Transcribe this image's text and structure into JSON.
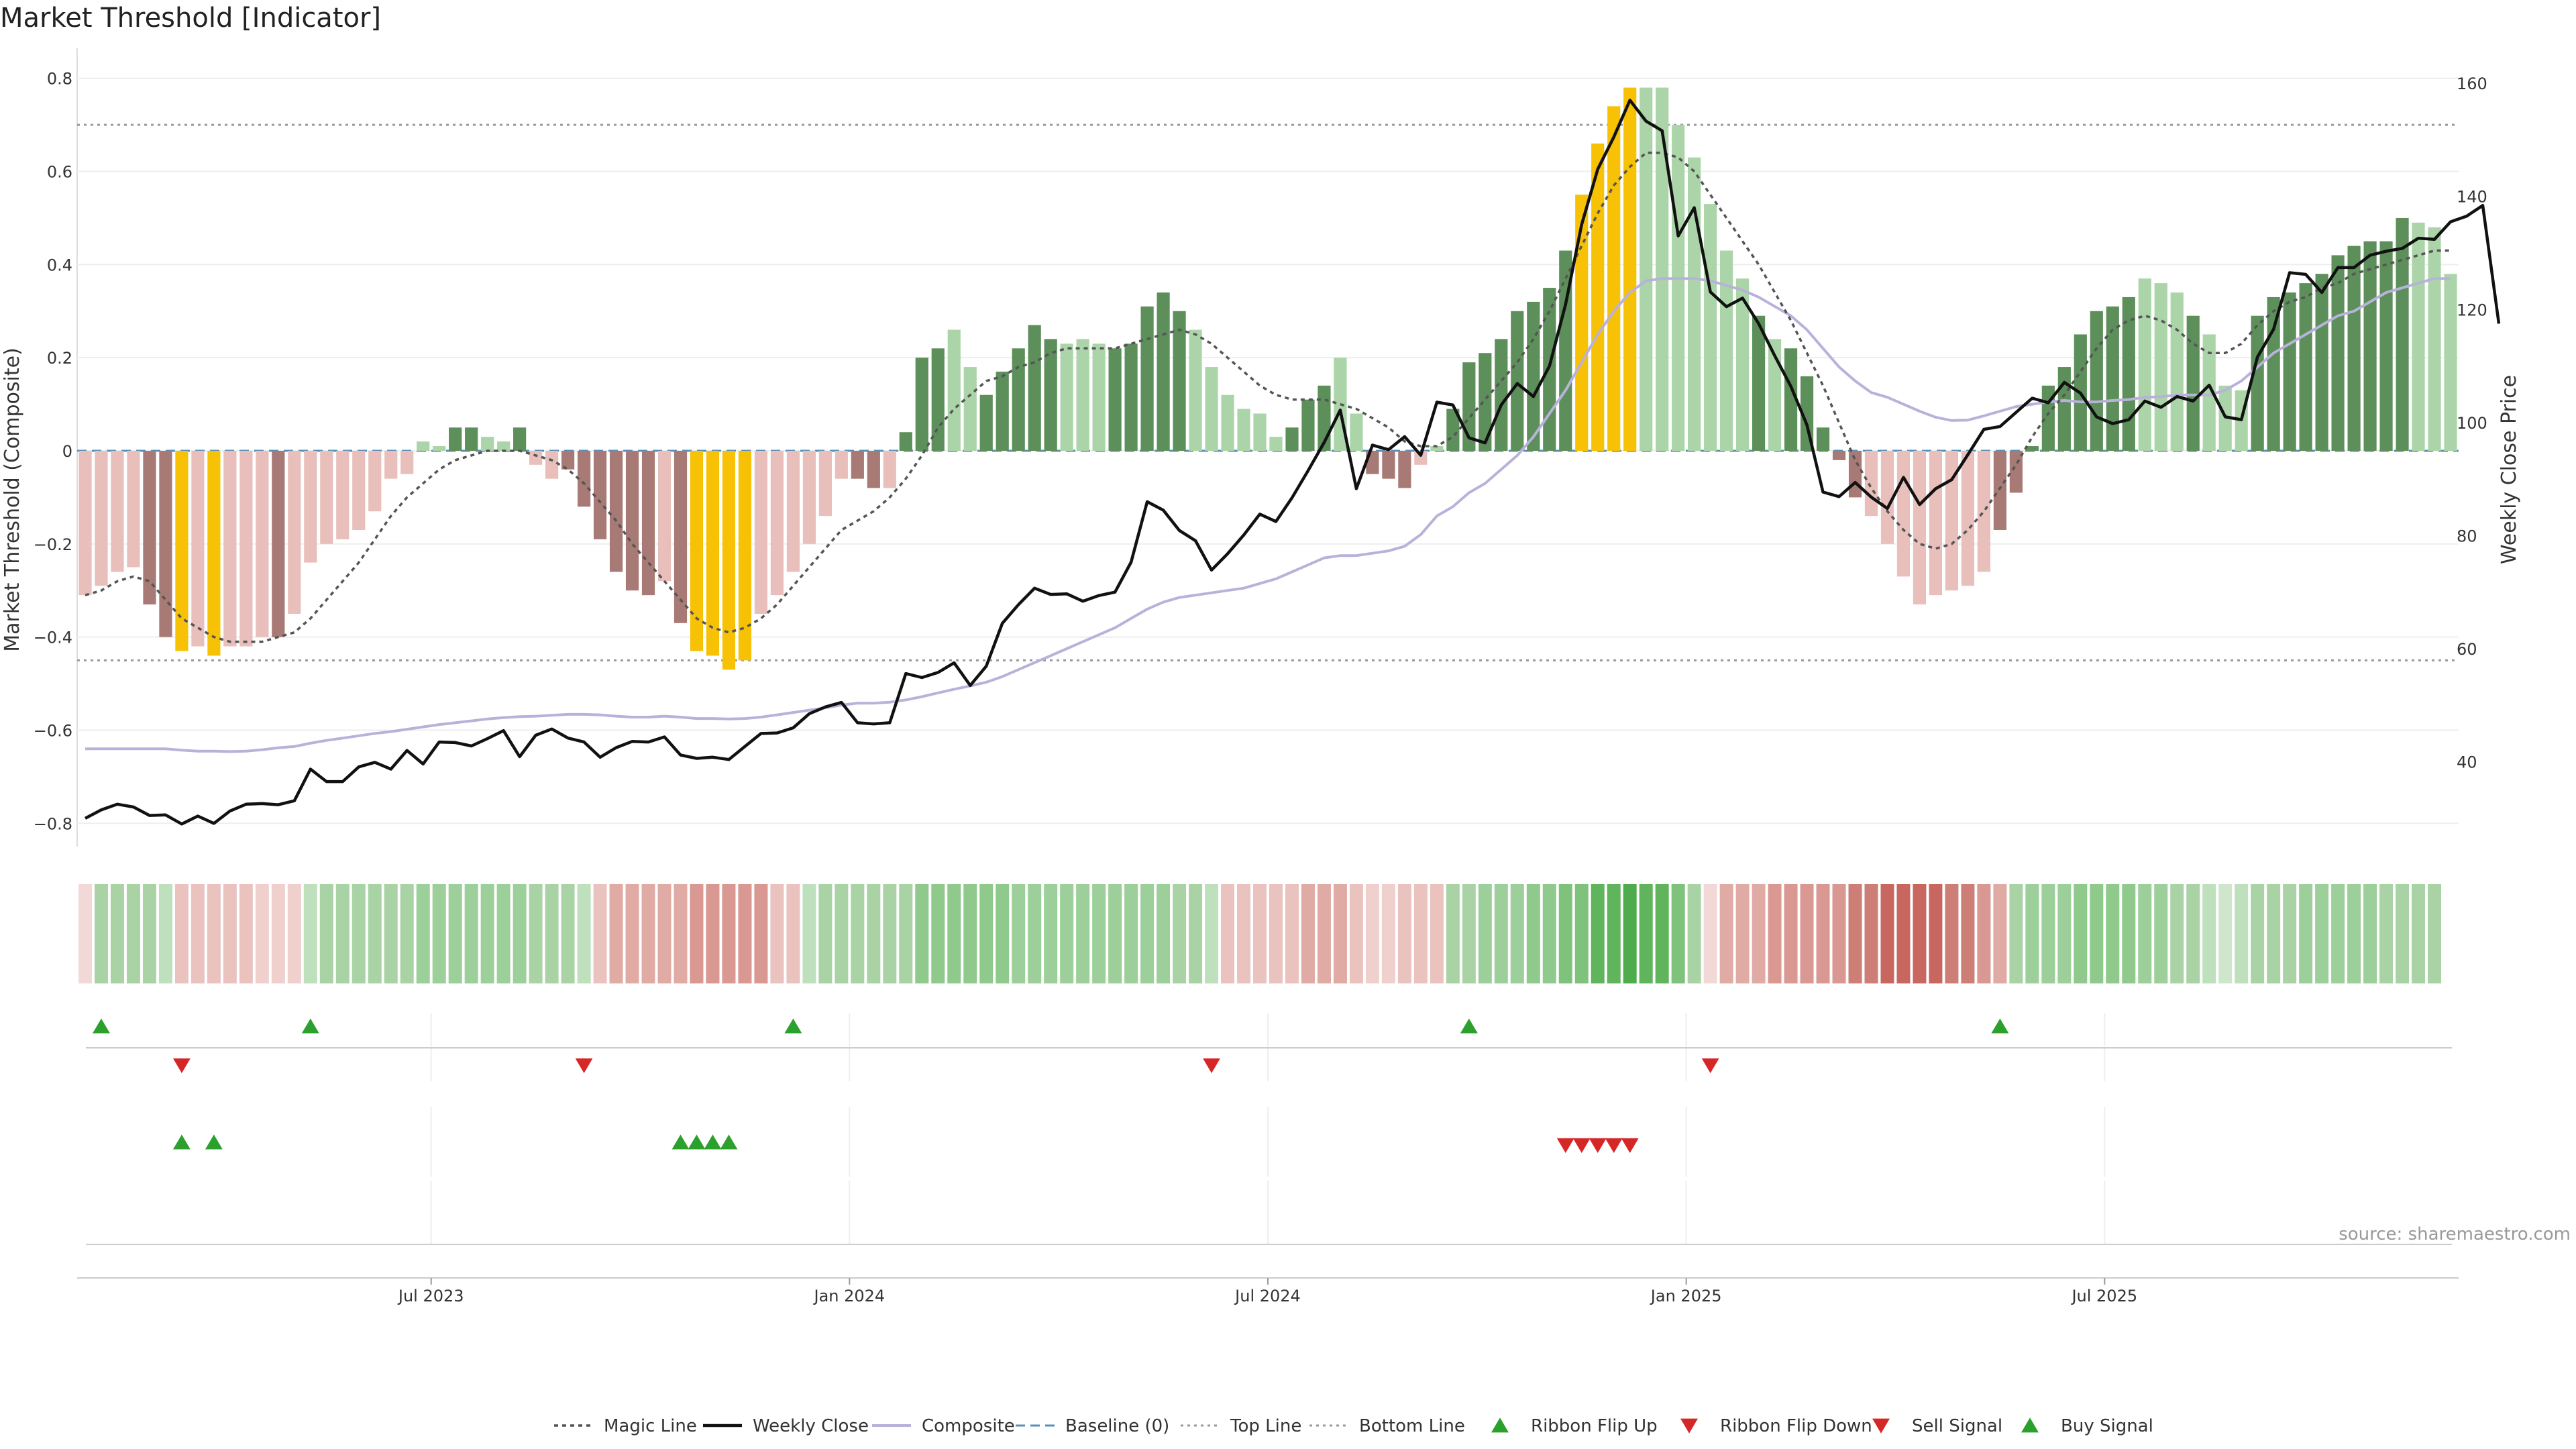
{
  "chart_data": {
    "type": "bar",
    "title": "Market Threshold [Indicator]",
    "ylabel": "Market Threshold (Composite)",
    "y2label": "Weekly Close Price",
    "ylim": [
      -0.85,
      0.85
    ],
    "y2lim": [
      25,
      165
    ],
    "yticks": [
      {
        "v": 0.8,
        "label": "0.8"
      },
      {
        "v": 0.6,
        "label": "0.6"
      },
      {
        "v": 0.4,
        "label": "0.4"
      },
      {
        "v": 0.2,
        "label": "0.2"
      },
      {
        "v": 0,
        "label": "0"
      },
      {
        "v": -0.2,
        "label": "−0.2"
      },
      {
        "v": -0.4,
        "label": "−0.4"
      },
      {
        "v": -0.6,
        "label": "−0.6"
      },
      {
        "v": -0.8,
        "label": "−0.8"
      }
    ],
    "y2ticks": [
      {
        "v": 160,
        "label": "160"
      },
      {
        "v": 140,
        "label": "140"
      },
      {
        "v": 120,
        "label": "120"
      },
      {
        "v": 100,
        "label": "100"
      },
      {
        "v": 80,
        "label": "80"
      },
      {
        "v": 60,
        "label": "60"
      },
      {
        "v": 40,
        "label": "40"
      }
    ],
    "xticks": [
      {
        "week": 21.5,
        "label": "Jul 2023"
      },
      {
        "week": 47.5,
        "label": "Jan 2024"
      },
      {
        "week": 73.5,
        "label": "Jul 2024"
      },
      {
        "week": 99.5,
        "label": "Jan 2025"
      },
      {
        "week": 125.5,
        "label": "Jul 2025"
      }
    ],
    "top_line": 0.7,
    "bottom_line": -0.45,
    "baseline": 0,
    "grid": true,
    "legend_position": "bottom-center",
    "source": "source: sharemaestro.com",
    "colors": {
      "light_red": "#e8bfbb",
      "dark_red": "#a87a76",
      "light_green": "#abd5a8",
      "dark_green": "#5d8f5a",
      "yellow": "#f7c105",
      "composite": "#b8b2da",
      "magic": "#555555",
      "close": "#111111",
      "baseline": "#5a8fb8",
      "signal_green": "#2ca02c",
      "signal_red": "#d62728"
    },
    "series": [
      {
        "name": "Composite Bars",
        "values": [
          -0.31,
          -0.29,
          -0.26,
          -0.25,
          -0.33,
          -0.4,
          -0.43,
          -0.42,
          -0.44,
          -0.42,
          -0.42,
          -0.4,
          -0.4,
          -0.35,
          -0.24,
          -0.2,
          -0.19,
          -0.17,
          -0.13,
          -0.06,
          -0.05,
          0.02,
          0.01,
          0.05,
          0.05,
          0.03,
          0.02,
          0.05,
          -0.03,
          -0.06,
          -0.04,
          -0.12,
          -0.19,
          -0.26,
          -0.3,
          -0.31,
          -0.28,
          -0.37,
          -0.43,
          -0.44,
          -0.47,
          -0.45,
          -0.35,
          -0.31,
          -0.26,
          -0.2,
          -0.14,
          -0.06,
          -0.06,
          -0.08,
          -0.08,
          0.04,
          0.2,
          0.22,
          0.26,
          0.18,
          0.12,
          0.17,
          0.22,
          0.27,
          0.24,
          0.23,
          0.24,
          0.23,
          0.22,
          0.23,
          0.31,
          0.34,
          0.3,
          0.26,
          0.18,
          0.12,
          0.09,
          0.08,
          0.03,
          0.05,
          0.11,
          0.14,
          0.2,
          0.08,
          -0.05,
          -0.06,
          -0.08,
          -0.03,
          0.01,
          0.09,
          0.19,
          0.21,
          0.24,
          0.3,
          0.32,
          0.35,
          0.43,
          0.55,
          0.66,
          0.74,
          0.78,
          0.78,
          0.78,
          0.7,
          0.63,
          0.53,
          0.43,
          0.37,
          0.29,
          0.24,
          0.22,
          0.16,
          0.05,
          -0.02,
          -0.1,
          -0.14,
          -0.2,
          -0.27,
          -0.33,
          -0.31,
          -0.3,
          -0.29,
          -0.26,
          -0.17,
          -0.09,
          0.01,
          0.14,
          0.18,
          0.25,
          0.3,
          0.31,
          0.33,
          0.37,
          0.36,
          0.34,
          0.29,
          0.25,
          0.14,
          0.13,
          0.29,
          0.33,
          0.34,
          0.36,
          0.38,
          0.42,
          0.44,
          0.45,
          0.45,
          0.5,
          0.49,
          0.48,
          0.38
        ],
        "color_codes": "LLLLDDYLYLLLDLLLLLLLLLLDDLLDLLDDDDDDLDYYYYLLLLLLDDLDDDLLDDDDDLLLDDDDDLLLLLLDDDLLDDDLLDDDDDDDDYYYYLLLLLLLDLDDDDDLLLLLLLLDDDDDDDDDLLLDLLLDDDDDDDDDDLLL"
      },
      {
        "name": "Magic Line",
        "values": [
          -0.31,
          -0.3,
          -0.28,
          -0.27,
          -0.28,
          -0.32,
          -0.36,
          -0.38,
          -0.4,
          -0.41,
          -0.41,
          -0.41,
          -0.4,
          -0.39,
          -0.36,
          -0.32,
          -0.28,
          -0.24,
          -0.19,
          -0.14,
          -0.1,
          -0.07,
          -0.04,
          -0.02,
          -0.01,
          0,
          0,
          0,
          -0.01,
          -0.02,
          -0.04,
          -0.07,
          -0.11,
          -0.15,
          -0.2,
          -0.24,
          -0.28,
          -0.32,
          -0.36,
          -0.38,
          -0.39,
          -0.38,
          -0.36,
          -0.33,
          -0.29,
          -0.25,
          -0.21,
          -0.17,
          -0.15,
          -0.13,
          -0.1,
          -0.06,
          -0.01,
          0.05,
          0.09,
          0.12,
          0.15,
          0.16,
          0.18,
          0.19,
          0.21,
          0.22,
          0.22,
          0.22,
          0.22,
          0.23,
          0.24,
          0.25,
          0.26,
          0.25,
          0.23,
          0.2,
          0.17,
          0.14,
          0.12,
          0.11,
          0.11,
          0.11,
          0.1,
          0.09,
          0.07,
          0.05,
          0.02,
          0.01,
          0.01,
          0.03,
          0.07,
          0.11,
          0.15,
          0.19,
          0.24,
          0.3,
          0.37,
          0.44,
          0.51,
          0.57,
          0.61,
          0.64,
          0.64,
          0.63,
          0.6,
          0.55,
          0.5,
          0.45,
          0.4,
          0.34,
          0.28,
          0.21,
          0.14,
          0.06,
          -0.02,
          -0.08,
          -0.13,
          -0.17,
          -0.2,
          -0.21,
          -0.2,
          -0.17,
          -0.13,
          -0.08,
          -0.03,
          0.03,
          0.08,
          0.12,
          0.17,
          0.22,
          0.26,
          0.28,
          0.29,
          0.28,
          0.26,
          0.23,
          0.21,
          0.21,
          0.23,
          0.27,
          0.3,
          0.32,
          0.33,
          0.35,
          0.36,
          0.38,
          0.39,
          0.4,
          0.41,
          0.42,
          0.43,
          0.43
        ]
      },
      {
        "name": "Weekly Close",
        "values": [
          30,
          31.5,
          32.5,
          32,
          30.5,
          30.6,
          29,
          30.4,
          29.1,
          31.3,
          32.5,
          32.6,
          32.4,
          33.1,
          38.7,
          36.5,
          36.5,
          39.1,
          39.9,
          38.7,
          42,
          39.6,
          43.5,
          43.4,
          42.8,
          44.1,
          45.5,
          40.9,
          44.7,
          45.8,
          44.2,
          43.5,
          40.8,
          42.5,
          43.6,
          43.5,
          44.4,
          41.2,
          40.6,
          40.8,
          40.4,
          42.7,
          45,
          45.1,
          46,
          48.5,
          49.7,
          50.5,
          46.9,
          46.7,
          46.9,
          55.6,
          54.9,
          55.8,
          57.5,
          53.5,
          56.9,
          64.5,
          67.8,
          70.7,
          69.6,
          69.7,
          68.4,
          69.4,
          70,
          75.3,
          86,
          84.5,
          80.9,
          79.1,
          73.9,
          76.8,
          80.1,
          83.8,
          82.5,
          86.7,
          91.5,
          96.5,
          102.2,
          88.3,
          96,
          95.2,
          97.5,
          94.2,
          103.6,
          103.1,
          97.3,
          96.4,
          103.1,
          106.9,
          104.6,
          110,
          120.9,
          135,
          144.8,
          150.5,
          157,
          153.3,
          151.6,
          133,
          138,
          123.1,
          120.5,
          122,
          117.5,
          111.8,
          106.4,
          99.6,
          87.7,
          86.9,
          89.4,
          86.8,
          84.8,
          90.3,
          85.5,
          88.3,
          89.9,
          94.3,
          98.8,
          99.3,
          101.8,
          104.3,
          103.5,
          107.1,
          105.2,
          101,
          99.8,
          100.5,
          103.8,
          102.7,
          104.6,
          103.8,
          106.6,
          101,
          100.5,
          111.6,
          116.5,
          126.5,
          126.2,
          123,
          127.4,
          127.4,
          129.6,
          130.3,
          130.8,
          132.6,
          132.4,
          135.5,
          136.5,
          138.4,
          117.5
        ]
      },
      {
        "name": "Composite",
        "values": [
          -0.64,
          -0.64,
          -0.64,
          -0.64,
          -0.64,
          -0.64,
          -0.643,
          -0.645,
          -0.645,
          -0.646,
          -0.645,
          -0.642,
          -0.638,
          -0.635,
          -0.628,
          -0.622,
          -0.617,
          -0.612,
          -0.607,
          -0.603,
          -0.598,
          -0.593,
          -0.588,
          -0.584,
          -0.58,
          -0.576,
          -0.573,
          -0.571,
          -0.57,
          -0.568,
          -0.566,
          -0.566,
          -0.567,
          -0.57,
          -0.572,
          -0.572,
          -0.57,
          -0.572,
          -0.575,
          -0.575,
          -0.576,
          -0.575,
          -0.572,
          -0.567,
          -0.562,
          -0.557,
          -0.552,
          -0.546,
          -0.542,
          -0.542,
          -0.54,
          -0.535,
          -0.528,
          -0.52,
          -0.512,
          -0.505,
          -0.497,
          -0.485,
          -0.47,
          -0.455,
          -0.44,
          -0.425,
          -0.41,
          -0.395,
          -0.38,
          -0.36,
          -0.34,
          -0.325,
          -0.315,
          -0.31,
          -0.305,
          -0.3,
          -0.295,
          -0.285,
          -0.275,
          -0.26,
          -0.245,
          -0.23,
          -0.225,
          -0.225,
          -0.22,
          -0.215,
          -0.205,
          -0.18,
          -0.14,
          -0.12,
          -0.09,
          -0.07,
          -0.04,
          -0.01,
          0.03,
          0.08,
          0.13,
          0.19,
          0.25,
          0.3,
          0.34,
          0.365,
          0.37,
          0.37,
          0.37,
          0.365,
          0.355,
          0.345,
          0.33,
          0.31,
          0.29,
          0.26,
          0.22,
          0.18,
          0.15,
          0.125,
          0.115,
          0.1,
          0.085,
          0.072,
          0.065,
          0.066,
          0.075,
          0.085,
          0.095,
          0.1,
          0.105,
          0.108,
          0.105,
          0.105,
          0.108,
          0.11,
          0.115,
          0.116,
          0.12,
          0.12,
          0.12,
          0.13,
          0.15,
          0.18,
          0.21,
          0.23,
          0.25,
          0.27,
          0.29,
          0.3,
          0.32,
          0.34,
          0.35,
          0.36,
          0.37,
          0.37
        ]
      }
    ],
    "ribbon_colors": [
      "#f2d9d7",
      "#a9d3a5",
      "#a9d3a5",
      "#a9d3a5",
      "#a9d3a5",
      "#bfe0bc",
      "#eac3bf",
      "#eac3bf",
      "#eac3bf",
      "#eac3bf",
      "#eac3bf",
      "#f0d0cd",
      "#f0d0cd",
      "#f0d0cd",
      "#bfe0bc",
      "#a9d3a5",
      "#a9d3a5",
      "#a9d3a5",
      "#a9d3a5",
      "#a9d3a5",
      "#a9d3a5",
      "#9ccf99",
      "#9ccf99",
      "#9ccf99",
      "#9ccf99",
      "#9ccf99",
      "#9ccf99",
      "#9ccf99",
      "#a9d3a5",
      "#a9d3a5",
      "#a9d3a5",
      "#bfe0bc",
      "#eac3bf",
      "#e0aaa5",
      "#e0aaa5",
      "#e0aaa5",
      "#e0aaa5",
      "#e0aaa5",
      "#d99891",
      "#d99891",
      "#d99891",
      "#d99891",
      "#d99891",
      "#eac3bf",
      "#eac3bf",
      "#bfe0bc",
      "#a9d3a5",
      "#a9d3a5",
      "#a9d3a5",
      "#a9d3a5",
      "#a9d3a5",
      "#a9d3a5",
      "#8fca8c",
      "#8fca8c",
      "#8fca8c",
      "#8fca8c",
      "#8fca8c",
      "#8fca8c",
      "#9ccf99",
      "#9ccf99",
      "#9ccf99",
      "#9ccf99",
      "#9ccf99",
      "#9ccf99",
      "#9ccf99",
      "#9ccf99",
      "#9ccf99",
      "#9ccf99",
      "#a9d3a5",
      "#a9d3a5",
      "#bfe0bc",
      "#eac3bf",
      "#eac3bf",
      "#eac3bf",
      "#eac3bf",
      "#eac3bf",
      "#e0aaa5",
      "#e0aaa5",
      "#e0aaa5",
      "#eac3bf",
      "#f0d0cd",
      "#f0d0cd",
      "#eac3bf",
      "#eac3bf",
      "#eac3bf",
      "#a9d3a5",
      "#a9d3a5",
      "#9ccf99",
      "#9ccf99",
      "#9ccf99",
      "#8fca8c",
      "#8fca8c",
      "#7fc27c",
      "#7fc27c",
      "#5fb45c",
      "#5fb45c",
      "#4fac4c",
      "#5fb45c",
      "#5fb45c",
      "#7fc27c",
      "#a9d3a5",
      "#f2d9d7",
      "#e0aaa5",
      "#e0aaa5",
      "#e0aaa5",
      "#d99891",
      "#d99891",
      "#d99891",
      "#d99891",
      "#d99891",
      "#cd7e77",
      "#cd7e77",
      "#c8675f",
      "#c8675f",
      "#c8675f",
      "#c8675f",
      "#cd7e77",
      "#cd7e77",
      "#d99891",
      "#e0aaa5",
      "#a9d3a5",
      "#9ccf99",
      "#9ccf99",
      "#9ccf99",
      "#8fca8c",
      "#8fca8c",
      "#8fca8c",
      "#8fca8c",
      "#9ccf99",
      "#9ccf99",
      "#a9d3a5",
      "#a9d3a5",
      "#bfe0bc",
      "#cfe6cd",
      "#bfe0bc",
      "#a9d3a5",
      "#a9d3a5",
      "#a9d3a5",
      "#9ccf99",
      "#9ccf99",
      "#9ccf99",
      "#9ccf99",
      "#9ccf99",
      "#a9d3a5",
      "#a9d3a5",
      "#a9d3a5",
      "#a9d3a5"
    ],
    "signals": {
      "ribbon_flip_up": [
        1,
        14,
        44,
        86,
        119
      ],
      "ribbon_flip_down": [
        6,
        31,
        70,
        101
      ],
      "buy_signal": [
        6,
        8,
        37,
        38,
        39,
        40
      ],
      "sell_signal": [
        92,
        93,
        94,
        95,
        96
      ]
    },
    "legend": [
      {
        "key": "magic",
        "label": "Magic Line"
      },
      {
        "key": "close",
        "label": "Weekly Close"
      },
      {
        "key": "composite",
        "label": "Composite"
      },
      {
        "key": "baseline",
        "label": "Baseline (0)"
      },
      {
        "key": "top",
        "label": "Top Line"
      },
      {
        "key": "bottom",
        "label": "Bottom Line"
      },
      {
        "key": "flipup",
        "label": "Ribbon Flip Up"
      },
      {
        "key": "flipdown",
        "label": "Ribbon Flip Down"
      },
      {
        "key": "sell",
        "label": "Sell Signal"
      },
      {
        "key": "buy",
        "label": "Buy Signal"
      }
    ]
  }
}
